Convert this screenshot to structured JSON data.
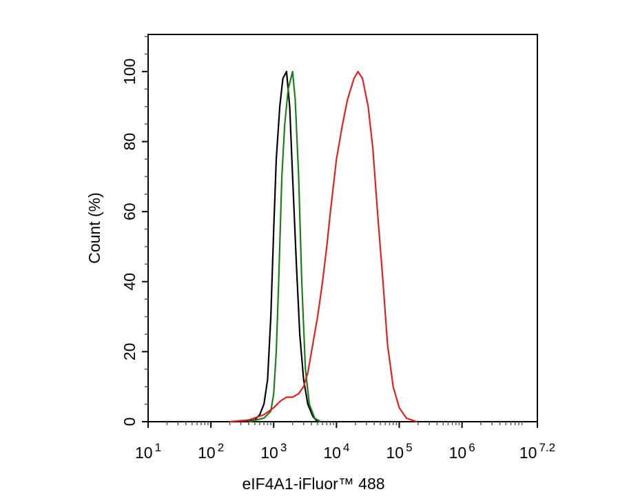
{
  "chart_data": {
    "type": "line",
    "xlabel": "eIF4A1-iFluor™ 488",
    "ylabel": "Count  (%)",
    "xscale": "log",
    "xlim": [
      10,
      15848931.92
    ],
    "ylim": [
      0,
      110.6
    ],
    "xticks": [
      {
        "value": 10,
        "label": "10",
        "exponent": "1"
      },
      {
        "value": 100,
        "label": "10",
        "exponent": "2"
      },
      {
        "value": 1000,
        "label": "10",
        "exponent": "3"
      },
      {
        "value": 10000,
        "label": "10",
        "exponent": "4"
      },
      {
        "value": 100000,
        "label": "10",
        "exponent": "5"
      },
      {
        "value": 1000000,
        "label": "10",
        "exponent": "6"
      },
      {
        "value": 15848931.92,
        "label": "10",
        "exponent": "7.2"
      }
    ],
    "yticks": [
      0,
      20,
      40,
      60,
      80,
      100
    ],
    "series": [
      {
        "color": "#000000",
        "x": [
          300,
          500,
          600,
          700,
          800,
          900,
          1000,
          1100,
          1250,
          1400,
          1600,
          1800,
          2000,
          2300,
          2600,
          3000,
          3500,
          4200,
          5000
        ],
        "values": [
          0,
          0.5,
          2,
          5,
          12,
          30,
          55,
          75,
          90,
          98,
          100,
          90,
          70,
          45,
          25,
          12,
          5,
          1.5,
          0
        ]
      },
      {
        "color": "#1a7f1a",
        "x": [
          400,
          700,
          900,
          1000,
          1100,
          1200,
          1350,
          1500,
          1700,
          2000,
          2200,
          2500,
          2800,
          3200,
          3700,
          4500,
          5600
        ],
        "values": [
          0,
          1,
          3,
          8,
          20,
          40,
          70,
          85,
          95,
          100,
          92,
          70,
          40,
          15,
          5,
          1,
          0
        ]
      },
      {
        "color": "#e02020",
        "x": [
          200,
          400,
          700,
          1000,
          1300,
          1600,
          2000,
          2500,
          3000,
          3500,
          4000,
          5000,
          6000,
          7000,
          8000,
          10000,
          12500,
          15000,
          19000,
          22000,
          26000,
          32000,
          38000,
          45000,
          55000,
          65000,
          80000,
          100000,
          130000,
          190000
        ],
        "values": [
          0,
          0.5,
          2,
          4,
          6,
          7,
          7,
          8,
          10,
          14,
          20,
          30,
          40,
          50,
          60,
          75,
          85,
          92,
          98,
          100,
          98,
          90,
          78,
          60,
          40,
          22,
          10,
          4,
          1,
          0
        ]
      }
    ]
  }
}
